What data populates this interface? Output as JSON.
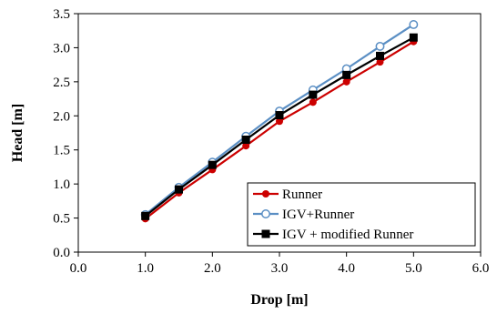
{
  "chart_data": {
    "type": "line",
    "title": "",
    "xlabel": "Drop [m]",
    "ylabel": "Head [m]",
    "xlim": [
      0.0,
      6.0
    ],
    "ylim": [
      0.0,
      3.5
    ],
    "xticks": [
      "0.0",
      "1.0",
      "2.0",
      "3.0",
      "4.0",
      "5.0",
      "6.0"
    ],
    "yticks": [
      "0.0",
      "0.5",
      "1.0",
      "1.5",
      "2.0",
      "2.5",
      "3.0",
      "3.5"
    ],
    "grid": false,
    "legend_position": "bottom-right",
    "series": [
      {
        "name": "Runner",
        "color": "#cc0000",
        "marker": "circle-filled",
        "x": [
          1.0,
          1.5,
          2.0,
          2.5,
          3.0,
          3.5,
          4.0,
          4.5,
          5.0
        ],
        "y": [
          0.49,
          0.87,
          1.21,
          1.56,
          1.92,
          2.2,
          2.5,
          2.79,
          3.09
        ]
      },
      {
        "name": "IGV+Runner",
        "color": "#5b8fc4",
        "marker": "circle-open",
        "x": [
          1.0,
          1.5,
          2.0,
          2.5,
          3.0,
          3.5,
          4.0,
          4.5,
          5.0
        ],
        "y": [
          0.55,
          0.95,
          1.32,
          1.7,
          2.07,
          2.38,
          2.69,
          3.02,
          3.34
        ]
      },
      {
        "name": "IGV + modified Runner",
        "color": "#000000",
        "marker": "square-filled",
        "x": [
          1.0,
          1.5,
          2.0,
          2.5,
          3.0,
          3.5,
          4.0,
          4.5,
          5.0
        ],
        "y": [
          0.53,
          0.92,
          1.28,
          1.65,
          2.01,
          2.31,
          2.6,
          2.88,
          3.15
        ]
      }
    ]
  }
}
